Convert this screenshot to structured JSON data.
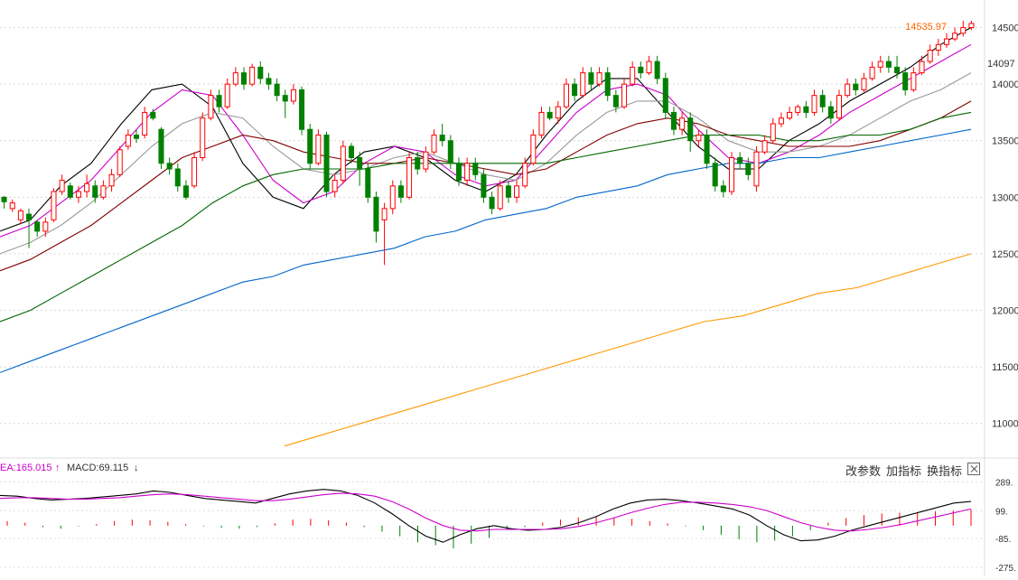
{
  "chart_data": [
    {
      "type": "candlestick",
      "title": "",
      "ylim": [
        10750,
        14680
      ],
      "y_ticks": [
        "14500",
        "14000",
        "13500",
        "13000",
        "12500",
        "12000",
        "11500",
        "11000"
      ],
      "last_price_label": "14535.97",
      "current_price_label": "14097",
      "candles": [
        [
          13000,
          12960,
          12900,
          13010
        ],
        [
          12900,
          12950,
          12870,
          12980
        ],
        [
          12800,
          12880,
          12760,
          12900
        ],
        [
          12850,
          12800,
          12550,
          12900
        ],
        [
          12780,
          12700,
          12650,
          12800
        ],
        [
          12700,
          12780,
          12650,
          12820
        ],
        [
          12800,
          13050,
          12780,
          13080
        ],
        [
          13050,
          13150,
          13020,
          13200
        ],
        [
          13100,
          13000,
          12980,
          13130
        ],
        [
          13000,
          13050,
          12950,
          13100
        ],
        [
          13050,
          13120,
          13000,
          13200
        ],
        [
          13100,
          13000,
          12950,
          13150
        ],
        [
          13000,
          13100,
          12980,
          13150
        ],
        [
          13100,
          13200,
          13050,
          13250
        ],
        [
          13200,
          13420,
          13180,
          13450
        ],
        [
          13450,
          13550,
          13420,
          13600
        ],
        [
          13550,
          13520,
          13480,
          13600
        ],
        [
          13550,
          13750,
          13520,
          13800
        ],
        [
          13750,
          13700,
          13680,
          13780
        ],
        [
          13600,
          13300,
          13250,
          13620
        ],
        [
          13300,
          13250,
          13200,
          13350
        ],
        [
          13250,
          13100,
          13050,
          13300
        ],
        [
          13100,
          13000,
          12980,
          13150
        ],
        [
          13100,
          13350,
          13080,
          13400
        ],
        [
          13350,
          13700,
          13320,
          13750
        ],
        [
          13700,
          13900,
          13680,
          13950
        ],
        [
          13900,
          13800,
          13750,
          13950
        ],
        [
          13800,
          14000,
          13780,
          14050
        ],
        [
          14000,
          14100,
          13980,
          14150
        ],
        [
          14100,
          14000,
          13950,
          14150
        ],
        [
          14000,
          14150,
          13980,
          14180
        ],
        [
          14150,
          14050,
          14000,
          14200
        ],
        [
          14050,
          14000,
          13950,
          14100
        ],
        [
          14000,
          13900,
          13850,
          14050
        ],
        [
          13900,
          13850,
          13700,
          13950
        ],
        [
          13850,
          13950,
          13820,
          14000
        ],
        [
          13950,
          13600,
          13550,
          13980
        ],
        [
          13600,
          13300,
          13250,
          13650
        ],
        [
          13300,
          13550,
          13280,
          13600
        ],
        [
          13550,
          13050,
          13000,
          13580
        ],
        [
          13050,
          13150,
          13000,
          13200
        ],
        [
          13150,
          13450,
          13120,
          13500
        ],
        [
          13450,
          13350,
          13300,
          13480
        ],
        [
          13350,
          13250,
          13100,
          13400
        ],
        [
          13250,
          13000,
          12950,
          13300
        ],
        [
          13000,
          12700,
          12600,
          13050
        ],
        [
          12800,
          12900,
          12400,
          12950
        ],
        [
          12900,
          13100,
          12850,
          13150
        ],
        [
          13100,
          13000,
          12950,
          13150
        ],
        [
          13000,
          13350,
          12980,
          13400
        ],
        [
          13350,
          13250,
          13200,
          13400
        ],
        [
          13250,
          13400,
          13220,
          13450
        ],
        [
          13400,
          13550,
          13380,
          13600
        ],
        [
          13550,
          13500,
          13450,
          13650
        ],
        [
          13500,
          13300,
          13250,
          13550
        ],
        [
          13300,
          13150,
          13100,
          13350
        ],
        [
          13150,
          13300,
          13100,
          13350
        ],
        [
          13300,
          13200,
          13150,
          13350
        ],
        [
          13200,
          13000,
          12950,
          13250
        ],
        [
          13000,
          12900,
          12850,
          13050
        ],
        [
          12900,
          13100,
          12880,
          13150
        ],
        [
          13100,
          13000,
          12950,
          13150
        ],
        [
          13000,
          13100,
          12950,
          13150
        ],
        [
          13100,
          13300,
          13080,
          13350
        ],
        [
          13300,
          13550,
          13280,
          13600
        ],
        [
          13550,
          13750,
          13520,
          13800
        ],
        [
          13750,
          13700,
          13680,
          13800
        ],
        [
          13700,
          13800,
          13650,
          13850
        ],
        [
          13800,
          14000,
          13780,
          14050
        ],
        [
          14000,
          13900,
          13850,
          14050
        ],
        [
          13900,
          14100,
          13880,
          14150
        ],
        [
          14100,
          14000,
          13950,
          14150
        ],
        [
          14000,
          14100,
          13980,
          14150
        ],
        [
          14100,
          13900,
          13850,
          14150
        ],
        [
          13900,
          13800,
          13750,
          13950
        ],
        [
          13800,
          14000,
          13780,
          14050
        ],
        [
          14000,
          14150,
          13980,
          14200
        ],
        [
          14150,
          14100,
          14050,
          14200
        ],
        [
          14100,
          14200,
          14080,
          14250
        ],
        [
          14200,
          14050,
          14000,
          14250
        ],
        [
          14050,
          13750,
          13700,
          14100
        ],
        [
          13750,
          13600,
          13550,
          13800
        ],
        [
          13600,
          13700,
          13550,
          13750
        ],
        [
          13700,
          13500,
          13400,
          13750
        ],
        [
          13500,
          13550,
          13450,
          13600
        ],
        [
          13550,
          13300,
          13250,
          13600
        ],
        [
          13300,
          13100,
          13050,
          13350
        ],
        [
          13100,
          13050,
          13000,
          13150
        ],
        [
          13050,
          13350,
          13020,
          13400
        ],
        [
          13350,
          13300,
          13250,
          13400
        ],
        [
          13300,
          13200,
          13150,
          13350
        ],
        [
          13100,
          13400,
          13050,
          13450
        ],
        [
          13400,
          13500,
          13380,
          13550
        ],
        [
          13500,
          13650,
          13480,
          13700
        ],
        [
          13650,
          13700,
          13620,
          13750
        ],
        [
          13700,
          13750,
          13680,
          13800
        ],
        [
          13750,
          13800,
          13720,
          13820
        ],
        [
          13800,
          13750,
          13700,
          13850
        ],
        [
          13750,
          13900,
          13720,
          13950
        ],
        [
          13900,
          13800,
          13750,
          13950
        ],
        [
          13800,
          13700,
          13650,
          13850
        ],
        [
          13700,
          13900,
          13680,
          13950
        ],
        [
          13900,
          14000,
          13880,
          14050
        ],
        [
          14000,
          13950,
          13900,
          14050
        ],
        [
          13950,
          14050,
          13930,
          14100
        ],
        [
          14050,
          14150,
          14030,
          14200
        ],
        [
          14150,
          14200,
          14100,
          14250
        ],
        [
          14200,
          14150,
          14100,
          14250
        ],
        [
          14150,
          14100,
          14050,
          14250
        ],
        [
          14100,
          13950,
          13900,
          14150
        ],
        [
          13950,
          14100,
          13930,
          14150
        ],
        [
          14100,
          14200,
          14080,
          14250
        ],
        [
          14200,
          14300,
          14180,
          14350
        ],
        [
          14300,
          14350,
          14250,
          14400
        ],
        [
          14350,
          14400,
          14320,
          14450
        ],
        [
          14400,
          14450,
          14380,
          14500
        ],
        [
          14450,
          14500,
          14420,
          14560
        ],
        [
          14500,
          14536,
          14480,
          14560
        ]
      ],
      "series": [
        {
          "values": [
            12700,
            12800,
            13100,
            13300,
            13650,
            13950,
            14000,
            13800,
            13300,
            13000,
            12900,
            13200,
            13400,
            13450,
            13350,
            13150,
            13050,
            13200,
            13550,
            13850,
            14050,
            14050,
            13750,
            13450,
            13250,
            13250,
            13500,
            13650,
            13850,
            14000,
            14150,
            14350,
            14500
          ],
          "color": "#000000"
        },
        {
          "values": [
            12650,
            12750,
            12950,
            13150,
            13450,
            13750,
            13950,
            13900,
            13550,
            13150,
            12950,
            13050,
            13300,
            13450,
            13400,
            13200,
            13100,
            13150,
            13450,
            13750,
            13950,
            14000,
            13900,
            13600,
            13350,
            13300,
            13400,
            13550,
            13750,
            13900,
            14050,
            14200,
            14350
          ],
          "color": "#cc00cc"
        },
        {
          "values": [
            12500,
            12600,
            12750,
            12950,
            13200,
            13450,
            13650,
            13750,
            13700,
            13450,
            13250,
            13200,
            13250,
            13350,
            13400,
            13300,
            13200,
            13150,
            13300,
            13550,
            13750,
            13850,
            13850,
            13700,
            13500,
            13400,
            13400,
            13450,
            13550,
            13700,
            13850,
            13950,
            14100
          ],
          "color": "#999999"
        },
        {
          "values": [
            12350,
            12450,
            12600,
            12750,
            12950,
            13150,
            13350,
            13450,
            13550,
            13500,
            13400,
            13350,
            13300,
            13300,
            13350,
            13300,
            13250,
            13200,
            13250,
            13400,
            13550,
            13650,
            13700,
            13650,
            13550,
            13500,
            13450,
            13450,
            13450,
            13500,
            13600,
            13700,
            13850
          ],
          "color": "#800000"
        },
        {
          "values": [
            11900,
            12000,
            12150,
            12300,
            12450,
            12600,
            12750,
            12950,
            13100,
            13200,
            13250,
            13250,
            13250,
            13300,
            13300,
            13300,
            13300,
            13300,
            13300,
            13350,
            13400,
            13450,
            13500,
            13550,
            13550,
            13550,
            13500,
            13500,
            13550,
            13550,
            13600,
            13700,
            13750
          ],
          "color": "#006600"
        },
        {
          "values": [
            11450,
            11550,
            11650,
            11750,
            11850,
            11950,
            12050,
            12150,
            12250,
            12300,
            12400,
            12450,
            12500,
            12550,
            12650,
            12700,
            12800,
            12850,
            12900,
            13000,
            13050,
            13100,
            13200,
            13250,
            13300,
            13300,
            13350,
            13350,
            13400,
            13450,
            13500,
            13550,
            13600
          ],
          "color": "#0066cc"
        },
        {
          "values": [
            10800,
            10900,
            11000,
            11100,
            11200,
            11300,
            11400,
            11500,
            11600,
            11700,
            11800,
            11900,
            11950,
            12050,
            12150,
            12200,
            12300,
            12400,
            12500
          ],
          "color": "#ff9900",
          "start_index": 45
        }
      ]
    },
    {
      "type": "bar",
      "title": "",
      "ylim": [
        -300,
        310
      ],
      "y_ticks": [
        "289.",
        "99.",
        "-85.",
        "-275."
      ],
      "dea_label": "EA:165.015",
      "macd_label": "MACD:69.115",
      "dif": [
        200,
        195,
        180,
        170,
        175,
        180,
        190,
        200,
        210,
        230,
        220,
        200,
        180,
        170,
        160,
        150,
        180,
        210,
        230,
        240,
        230,
        200,
        150,
        80,
        0,
        -70,
        -110,
        -60,
        -20,
        0,
        -20,
        -30,
        -25,
        -10,
        20,
        60,
        110,
        150,
        170,
        175,
        165,
        150,
        130,
        110,
        70,
        0,
        -60,
        -100,
        -95,
        -70,
        -30,
        0,
        30,
        60,
        90,
        120,
        150,
        160
      ],
      "dea": [
        180,
        185,
        185,
        180,
        175,
        175,
        180,
        185,
        195,
        205,
        210,
        205,
        195,
        185,
        175,
        165,
        165,
        175,
        190,
        205,
        215,
        210,
        195,
        160,
        110,
        50,
        0,
        -30,
        -35,
        -25,
        -25,
        -25,
        -25,
        -20,
        -5,
        20,
        50,
        85,
        115,
        140,
        155,
        155,
        150,
        140,
        125,
        100,
        60,
        20,
        -10,
        -30,
        -35,
        -25,
        -10,
        10,
        35,
        60,
        85,
        110
      ],
      "hist": [
        30,
        20,
        -10,
        -20,
        -5,
        10,
        30,
        40,
        35,
        25,
        10,
        -5,
        -15,
        -20,
        -10,
        15,
        40,
        45,
        35,
        20,
        -10,
        -40,
        -70,
        -110,
        -130,
        -150,
        -120,
        -80,
        -30,
        -10,
        20,
        40,
        55,
        60,
        55,
        45,
        30,
        15,
        -5,
        -30,
        -60,
        -90,
        -110,
        -100,
        -70,
        -30,
        20,
        50,
        70,
        80,
        85,
        90,
        95,
        100,
        105
      ]
    }
  ],
  "toolbar": {
    "change_params": "改参数",
    "add_indicator": "加指标",
    "switch_indicator": "换指标"
  },
  "icons": {
    "dea_arrow": "arrow-up-icon",
    "macd_arrow": "arrow-down-icon",
    "close": "close-icon"
  },
  "colors": {
    "up": "#ff0000",
    "down": "#008000",
    "dif": "#000000",
    "dea": "#cc00cc",
    "price_label": "#ff6600"
  }
}
